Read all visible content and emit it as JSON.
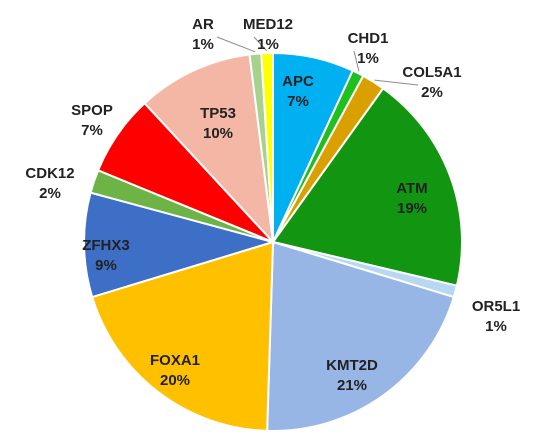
{
  "chart_data": {
    "type": "pie",
    "title": "",
    "slices": [
      {
        "label": "APC",
        "value": 7,
        "pct": "7%",
        "color": "#00B0F0"
      },
      {
        "label": "CHD1",
        "value": 1,
        "pct": "1%",
        "color": "#1FBF1F"
      },
      {
        "label": "COL5A1",
        "value": 2,
        "pct": "2%",
        "color": "#D9A000"
      },
      {
        "label": "ATM",
        "value": 19,
        "pct": "19%",
        "color": "#129612"
      },
      {
        "label": "OR5L1",
        "value": 1,
        "pct": "1%",
        "color": "#B8D7F2"
      },
      {
        "label": "KMT2D",
        "value": 21,
        "pct": "21%",
        "color": "#97B6E5"
      },
      {
        "label": "FOXA1",
        "value": 20,
        "pct": "20%",
        "color": "#FFC000"
      },
      {
        "label": "ZFHX3",
        "value": 9,
        "pct": "9%",
        "color": "#3E6FC7"
      },
      {
        "label": "CDK12",
        "value": 2,
        "pct": "2%",
        "color": "#6DB346"
      },
      {
        "label": "SPOP",
        "value": 7,
        "pct": "7%",
        "color": "#FF0000"
      },
      {
        "label": "TP53",
        "value": 10,
        "pct": "10%",
        "color": "#F4B7A5"
      },
      {
        "label": "AR",
        "value": 1,
        "pct": "1%",
        "color": "#A9D18E"
      },
      {
        "label": "MED12",
        "value": 1,
        "pct": "1%",
        "color": "#FFFF00"
      }
    ]
  }
}
